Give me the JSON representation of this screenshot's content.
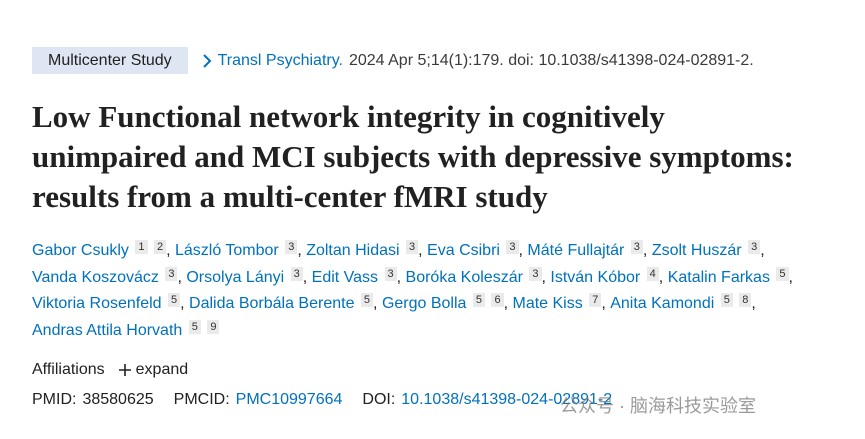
{
  "header": {
    "tag": "Multicenter Study",
    "journal": "Transl Psychiatry.",
    "citation": "2024 Apr 5;14(1):179. doi: 10.1038/s41398-024-02891-2."
  },
  "title": "Low Functional network integrity in cognitively unimpaired and MCI subjects with depressive symptoms: results from a multi-center fMRI study",
  "authors": [
    {
      "name": "Gabor Csukly",
      "affiliations": [
        1,
        2
      ]
    },
    {
      "name": "László Tombor",
      "affiliations": [
        3
      ]
    },
    {
      "name": "Zoltan Hidasi",
      "affiliations": [
        3
      ]
    },
    {
      "name": "Eva Csibri",
      "affiliations": [
        3
      ]
    },
    {
      "name": "Máté Fullajtár",
      "affiliations": [
        3
      ]
    },
    {
      "name": "Zsolt Huszár",
      "affiliations": [
        3
      ]
    },
    {
      "name": "Vanda Koszovácz",
      "affiliations": [
        3
      ]
    },
    {
      "name": "Orsolya Lányi",
      "affiliations": [
        3
      ]
    },
    {
      "name": "Edit Vass",
      "affiliations": [
        3
      ]
    },
    {
      "name": "Boróka Koleszár",
      "affiliations": [
        3
      ]
    },
    {
      "name": "István Kóbor",
      "affiliations": [
        4
      ]
    },
    {
      "name": "Katalin Farkas",
      "affiliations": [
        5
      ]
    },
    {
      "name": "Viktoria Rosenfeld",
      "affiliations": [
        5
      ]
    },
    {
      "name": "Dalida Borbála Berente",
      "affiliations": [
        5
      ]
    },
    {
      "name": "Gergo Bolla",
      "affiliations": [
        5,
        6
      ]
    },
    {
      "name": "Mate Kiss",
      "affiliations": [
        7
      ]
    },
    {
      "name": "Anita Kamondi",
      "affiliations": [
        5,
        8
      ]
    },
    {
      "name": "Andras Attila Horvath",
      "affiliations": [
        5,
        9
      ]
    }
  ],
  "affiliations": {
    "label": "Affiliations",
    "toggle": "expand"
  },
  "identifiers": {
    "pmid_label": "PMID:",
    "pmid": "38580625",
    "pmcid_label": "PMCID:",
    "pmcid": "PMC10997664",
    "doi_label": "DOI:",
    "doi": "10.1038/s41398-024-02891-2"
  },
  "watermark": "公众号 · 脑海科技实验室"
}
